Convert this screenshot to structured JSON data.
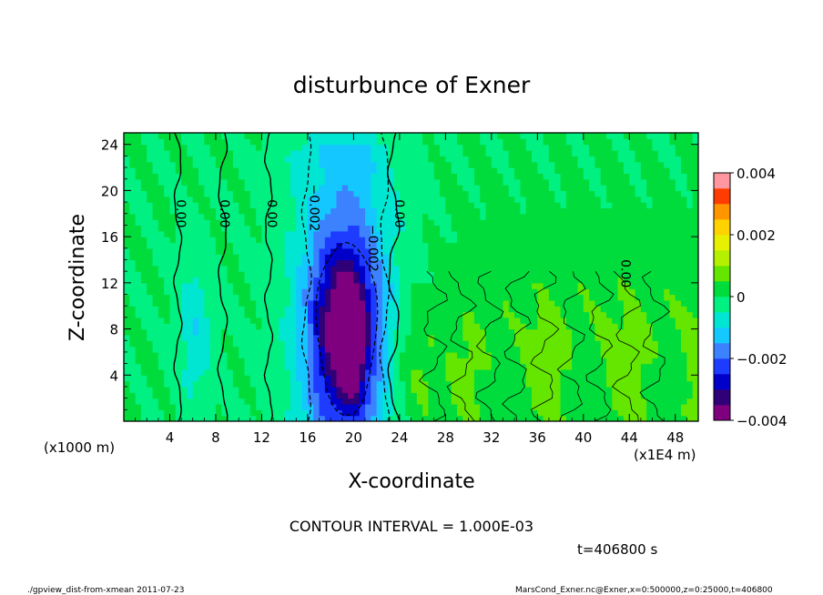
{
  "chart_data": {
    "type": "heatmap",
    "title": "disturbunce of Exner",
    "xlabel": "X-coordinate",
    "ylabel": "Z-coordinate",
    "x_unit_left": "(x1000 m)",
    "x_unit_right": "(x1E4 m)",
    "xlim": [
      0,
      50
    ],
    "ylim": [
      0,
      25
    ],
    "x_ticks": [
      4,
      8,
      12,
      16,
      20,
      24,
      28,
      32,
      36,
      40,
      44,
      48
    ],
    "y_ticks": [
      4,
      8,
      12,
      16,
      20,
      24
    ],
    "x_tick_labels": [
      "4",
      "8",
      "12",
      "16",
      "20",
      "24",
      "28",
      "32",
      "36",
      "40",
      "44",
      "48"
    ],
    "y_tick_labels": [
      "4",
      "8",
      "12",
      "16",
      "20",
      "24"
    ],
    "colorbar": {
      "min": -0.004,
      "max": 0.004,
      "levels": 16,
      "colors": [
        "#7f007f",
        "#2f0078",
        "#0000c8",
        "#1e3cff",
        "#3c82ff",
        "#14c8ff",
        "#00e6d2",
        "#00f082",
        "#00dc3c",
        "#64e600",
        "#b4f000",
        "#e6f000",
        "#ffd200",
        "#ff9600",
        "#ff3c00",
        "#ff96a0"
      ],
      "tick_values": [
        0.004,
        0.002,
        0,
        -0.002,
        -0.004
      ],
      "tick_labels": [
        "0.004",
        "0.002",
        "0",
        "−0.002",
        "−0.004"
      ]
    },
    "contour_labels": [
      {
        "text": "0.00",
        "x": 4.6,
        "z": 18.0
      },
      {
        "text": "0.00",
        "x": 8.4,
        "z": 18.0
      },
      {
        "text": "0.00",
        "x": 12.5,
        "z": 18.0
      },
      {
        "text": "−0.002",
        "x": 16.2,
        "z": 18.5
      },
      {
        "text": "−0.002",
        "x": 21.3,
        "z": 15.0
      },
      {
        "text": "0.00",
        "x": 23.6,
        "z": 18.0
      },
      {
        "text": "0.00",
        "x": 43.3,
        "z": 12.8
      }
    ],
    "annotations": {
      "contour_interval": "CONTOUR INTERVAL = 1.000E-03",
      "time": "t=406800 s",
      "footer_left": "./gpview_dist-from-xmean  2011-07-23",
      "footer_right": "MarsCond_Exner.nc@Exner,x=0:500000,z=0:25000,t=406800"
    }
  }
}
